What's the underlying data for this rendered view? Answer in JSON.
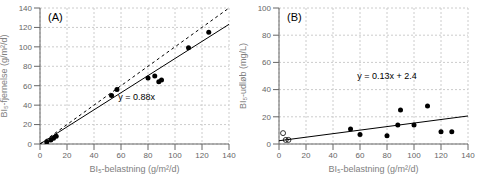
{
  "chart_data": [
    {
      "type": "scatter",
      "title": "(A)",
      "x_label": "BI₅-belastning (g/m²/d)",
      "y_label": "BI₅-fjernelse (g/m²/d)",
      "xlim": [
        0,
        140
      ],
      "ylim": [
        0,
        140
      ],
      "xticks": [
        0,
        20,
        40,
        60,
        80,
        100,
        120,
        140
      ],
      "yticks": [
        0,
        20,
        40,
        60,
        80,
        100,
        120,
        140
      ],
      "grid": true,
      "series": [
        {
          "type": "line",
          "color": "#000000",
          "line_style": "solid",
          "x": [
            0,
            140
          ],
          "values": [
            0,
            123.2
          ]
        },
        {
          "type": "line",
          "color": "#000000",
          "line_style": "dashed",
          "x": [
            0,
            140
          ],
          "values": [
            0,
            140
          ]
        },
        {
          "type": "scatter",
          "color": "#000000",
          "marker": "filled",
          "x": [
            5,
            8,
            10,
            12,
            53,
            57,
            80,
            85,
            88,
            90,
            110,
            125
          ],
          "values": [
            2,
            4,
            6,
            8,
            50,
            56,
            68,
            70,
            64,
            66,
            99,
            115
          ]
        }
      ],
      "annotations": [
        {
          "text": "y = 0.88x",
          "x": 58,
          "y": 43
        }
      ]
    },
    {
      "type": "scatter",
      "title": "(B)",
      "x_label": "BI₅-belastning (g/m²/d)",
      "y_label": "BI₅-udløb (mg/L)",
      "xlim": [
        0,
        140
      ],
      "ylim": [
        0,
        100
      ],
      "xticks": [
        0,
        20,
        40,
        60,
        80,
        100,
        120,
        140
      ],
      "yticks": [
        0,
        20,
        40,
        60,
        80,
        100
      ],
      "grid": true,
      "series": [
        {
          "type": "line",
          "color": "#000000",
          "line_style": "solid",
          "x": [
            0,
            140
          ],
          "values": [
            2.4,
            20.6
          ]
        },
        {
          "type": "scatter",
          "color": "#000000",
          "marker": "filled",
          "x": [
            53,
            60,
            80,
            88,
            90,
            100,
            110,
            120,
            128
          ],
          "values": [
            11,
            7,
            6,
            14,
            25,
            14,
            28,
            9,
            9
          ]
        },
        {
          "type": "scatter",
          "color": "#000000",
          "marker": "open",
          "x": [
            3,
            5,
            7
          ],
          "values": [
            8,
            3,
            3
          ]
        }
      ],
      "annotations": [
        {
          "text": "y = 0.13x + 2.4",
          "x": 58,
          "y": 46
        }
      ]
    }
  ]
}
